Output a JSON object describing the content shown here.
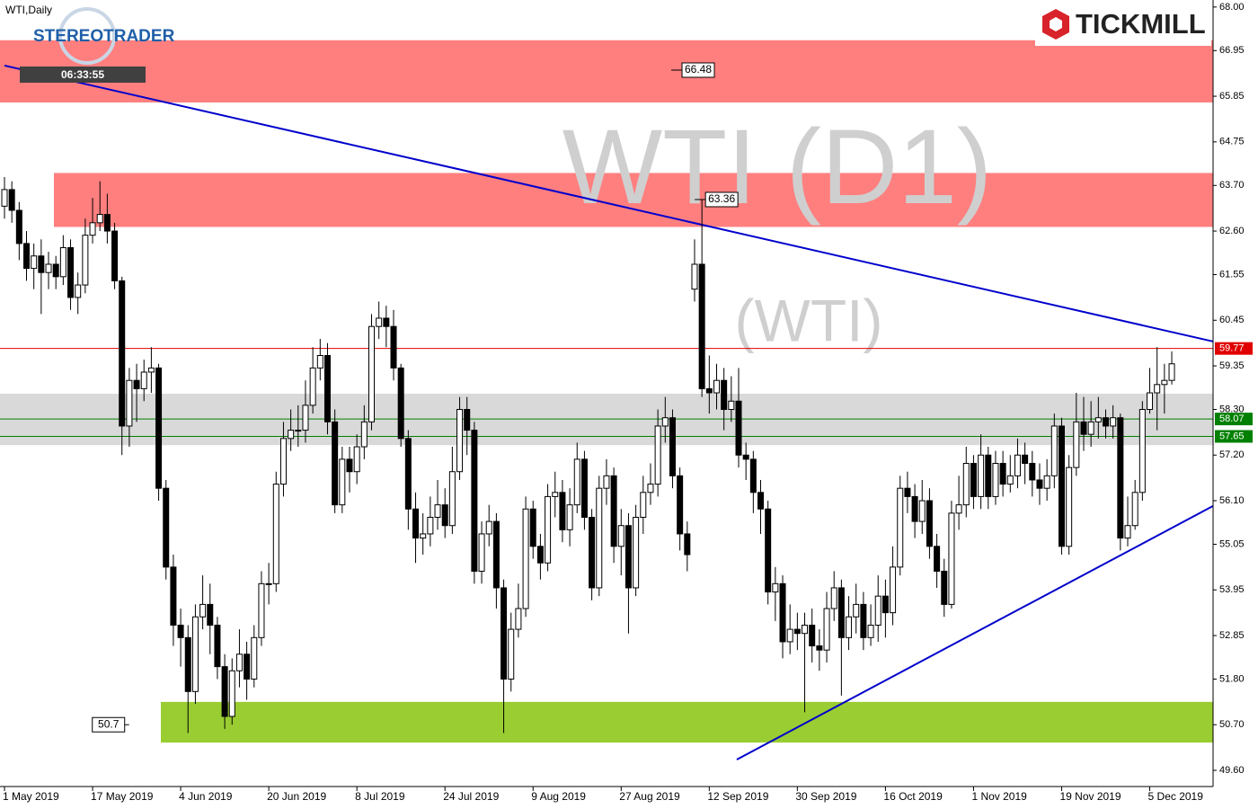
{
  "chart_data": {
    "type": "candlestick",
    "title": "WTI,Daily",
    "watermark": [
      "WTI (D1)",
      "(WTI)"
    ],
    "brands": [
      "STEREOTRADER",
      "TICKMILL"
    ],
    "timer": "06:33:55",
    "categories": [
      "1 May 2019",
      null,
      null,
      null,
      null,
      null,
      null,
      null,
      null,
      null,
      null,
      null,
      "17 May 2019",
      null,
      null,
      null,
      null,
      null,
      null,
      null,
      null,
      null,
      null,
      null,
      "4 Jun 2019",
      null,
      null,
      null,
      null,
      null,
      null,
      null,
      null,
      null,
      null,
      null,
      "20 Jun 2019",
      null,
      null,
      null,
      null,
      null,
      null,
      null,
      null,
      null,
      null,
      null,
      "8 Jul 2019",
      null,
      null,
      null,
      null,
      null,
      null,
      null,
      null,
      null,
      null,
      null,
      "24 Jul 2019",
      null,
      null,
      null,
      null,
      null,
      null,
      null,
      null,
      null,
      null,
      null,
      "9 Aug 2019",
      null,
      null,
      null,
      null,
      null,
      null,
      null,
      null,
      null,
      null,
      null,
      "27 Aug 2019",
      null,
      null,
      null,
      null,
      null,
      null,
      null,
      null,
      null,
      null,
      null,
      "12 Sep 2019",
      null,
      null,
      null,
      null,
      null,
      null,
      null,
      null,
      null,
      null,
      null,
      "30 Sep 2019",
      null,
      null,
      null,
      null,
      null,
      null,
      null,
      null,
      null,
      null,
      null,
      "16 Oct 2019",
      null,
      null,
      null,
      null,
      null,
      null,
      null,
      null,
      null,
      null,
      null,
      "1 Nov 2019",
      null,
      null,
      null,
      null,
      null,
      null,
      null,
      null,
      null,
      null,
      null,
      "19 Nov 2019",
      null,
      null,
      null,
      null,
      null,
      null,
      null,
      null,
      null,
      null,
      null,
      "5 Dec 2019",
      null,
      null,
      null
    ],
    "open": [
      63.2,
      63.6,
      63.1,
      62.3,
      61.7,
      62.0,
      61.6,
      61.8,
      61.5,
      62.2,
      61.0,
      61.3,
      62.5,
      62.8,
      63.0,
      62.6,
      61.4,
      57.9,
      59.0,
      58.8,
      59.2,
      59.3,
      56.4,
      54.5,
      53.1,
      52.8,
      51.5,
      53.3,
      53.6,
      53.1,
      52.1,
      50.9,
      52.0,
      52.4,
      51.8,
      52.8,
      54.1,
      54.1,
      56.5,
      57.6,
      57.8,
      57.8,
      58.4,
      59.3,
      59.6,
      58.0,
      56.0,
      57.1,
      56.8,
      57.4,
      58.0,
      60.3,
      60.5,
      60.3,
      59.3,
      57.6,
      55.9,
      55.2,
      55.3,
      55.7,
      56.0,
      55.5,
      56.8,
      58.3,
      57.8,
      54.4,
      55.3,
      55.6,
      54.0,
      51.8,
      53.0,
      53.5,
      55.9,
      55.0,
      54.6,
      56.2,
      56.3,
      55.4,
      56.0,
      57.1,
      55.7,
      54.0,
      56.4,
      56.7,
      55.0,
      55.5,
      54.0,
      55.7,
      56.3,
      56.5,
      57.9,
      58.1,
      56.7,
      55.3,
      61.2,
      61.8,
      58.8,
      58.7,
      59.0,
      58.3,
      58.5,
      57.2,
      57.1,
      56.3,
      55.9,
      53.9,
      54.1,
      52.7,
      53.0,
      52.9,
      53.1,
      52.6,
      52.5,
      53.5,
      54.0,
      52.8,
      53.3,
      53.6,
      52.8,
      53.1,
      53.8,
      53.4,
      54.5,
      56.4,
      56.2,
      55.6,
      56.1,
      55.0,
      54.4,
      53.6,
      55.8,
      56.0,
      57.0,
      56.2,
      57.2,
      56.2,
      57.0,
      56.5,
      56.7,
      57.2,
      57.0,
      56.6,
      56.4,
      56.7,
      57.9,
      55.0,
      56.9,
      58.0,
      57.7,
      58.0,
      58.1,
      57.9,
      58.1,
      55.2,
      55.5,
      56.3,
      58.3,
      58.7,
      58.9,
      59.0
    ],
    "high": [
      63.9,
      63.8,
      63.3,
      62.6,
      62.3,
      62.4,
      62.1,
      62.0,
      62.5,
      62.4,
      61.6,
      62.9,
      63.4,
      63.8,
      63.5,
      62.8,
      61.5,
      59.3,
      59.4,
      59.5,
      59.8,
      59.4,
      56.6,
      54.8,
      53.5,
      53.1,
      53.6,
      54.3,
      54.1,
      53.3,
      52.4,
      52.3,
      53.0,
      52.7,
      53.1,
      54.4,
      54.6,
      56.8,
      58.0,
      58.3,
      58.4,
      59.0,
      59.8,
      60.0,
      59.9,
      58.3,
      57.4,
      57.4,
      57.7,
      58.4,
      60.6,
      60.9,
      60.8,
      60.7,
      59.4,
      57.8,
      56.3,
      55.8,
      56.2,
      56.6,
      56.4,
      57.4,
      58.6,
      58.6,
      58.0,
      55.6,
      56.0,
      55.8,
      54.2,
      53.4,
      54.1,
      56.2,
      56.1,
      55.3,
      56.5,
      56.8,
      56.6,
      56.4,
      57.5,
      57.3,
      55.9,
      56.7,
      57.1,
      56.9,
      55.9,
      55.8,
      56.0,
      56.7,
      57.0,
      58.3,
      58.6,
      58.3,
      56.9,
      55.6,
      62.4,
      63.36,
      59.6,
      59.4,
      59.3,
      59.1,
      59.3,
      57.5,
      57.3,
      56.6,
      56.1,
      54.5,
      54.3,
      53.6,
      53.4,
      53.4,
      53.5,
      53.0,
      53.9,
      54.4,
      54.2,
      53.8,
      54.1,
      53.9,
      53.6,
      54.3,
      54.2,
      55.0,
      56.7,
      56.8,
      56.5,
      56.6,
      56.4,
      55.3,
      54.7,
      56.1,
      56.7,
      57.4,
      57.2,
      57.7,
      57.4,
      57.3,
      57.3,
      57.2,
      57.6,
      57.5,
      57.3,
      57.0,
      57.1,
      58.2,
      58.1,
      57.2,
      58.7,
      58.6,
      58.5,
      58.6,
      58.3,
      58.4,
      58.2,
      56.2,
      56.6,
      58.5,
      59.3,
      59.8,
      59.4,
      59.7
    ],
    "low": [
      62.9,
      62.8,
      61.9,
      61.4,
      61.2,
      60.6,
      61.2,
      61.2,
      61.3,
      60.7,
      60.6,
      61.1,
      62.3,
      62.6,
      62.3,
      61.2,
      57.2,
      57.4,
      58.0,
      58.5,
      58.7,
      56.1,
      54.2,
      52.6,
      52.1,
      50.5,
      51.2,
      53.0,
      52.4,
      51.8,
      50.6,
      50.7,
      51.6,
      51.3,
      51.6,
      52.6,
      53.6,
      53.9,
      56.2,
      57.3,
      57.4,
      57.5,
      58.2,
      59.0,
      57.7,
      55.8,
      55.8,
      56.3,
      56.5,
      57.1,
      57.8,
      60.0,
      59.8,
      59.0,
      57.4,
      55.4,
      54.6,
      54.8,
      55.0,
      55.4,
      55.2,
      55.3,
      56.6,
      57.2,
      54.1,
      54.1,
      55.0,
      53.5,
      50.5,
      51.5,
      52.8,
      53.3,
      54.7,
      54.2,
      54.4,
      55.7,
      55.1,
      55.0,
      55.8,
      55.4,
      53.7,
      53.8,
      56.0,
      54.6,
      54.3,
      52.9,
      53.8,
      55.3,
      56.0,
      56.2,
      57.5,
      56.4,
      54.9,
      54.4,
      60.9,
      58.6,
      58.2,
      58.3,
      57.8,
      58.0,
      56.9,
      56.6,
      55.8,
      55.3,
      53.6,
      53.2,
      52.3,
      52.4,
      52.5,
      51.0,
      52.2,
      52.0,
      52.2,
      53.2,
      51.4,
      52.5,
      52.9,
      52.5,
      52.6,
      52.7,
      52.8,
      53.1,
      54.3,
      55.8,
      55.2,
      55.3,
      54.7,
      54.0,
      53.3,
      53.5,
      55.4,
      55.7,
      55.9,
      55.9,
      55.9,
      56.0,
      56.2,
      56.3,
      56.4,
      56.5,
      56.2,
      56.0,
      56.1,
      56.4,
      54.8,
      54.8,
      56.7,
      57.3,
      57.4,
      57.6,
      57.6,
      57.6,
      54.9,
      55.0,
      55.4,
      56.1,
      58.2,
      57.8,
      58.2,
      58.9
    ],
    "close": [
      63.6,
      63.1,
      62.3,
      61.7,
      62.0,
      61.6,
      61.8,
      61.5,
      62.2,
      61.0,
      61.3,
      62.5,
      62.8,
      63.0,
      62.6,
      61.4,
      57.9,
      59.0,
      58.8,
      59.2,
      59.3,
      56.4,
      54.5,
      53.1,
      52.8,
      51.5,
      53.3,
      53.6,
      53.1,
      52.1,
      50.9,
      52.0,
      52.4,
      51.8,
      52.8,
      54.1,
      54.1,
      56.5,
      57.6,
      57.8,
      57.8,
      58.4,
      59.3,
      59.6,
      58.0,
      56.0,
      57.1,
      56.8,
      57.4,
      58.0,
      60.3,
      60.5,
      60.3,
      59.3,
      57.6,
      55.9,
      55.2,
      55.3,
      55.7,
      56.0,
      55.5,
      56.8,
      58.3,
      57.8,
      54.4,
      55.3,
      55.6,
      54.0,
      51.8,
      53.0,
      53.5,
      55.9,
      55.0,
      54.6,
      56.2,
      56.3,
      55.4,
      56.0,
      57.1,
      55.7,
      54.0,
      56.4,
      56.7,
      55.0,
      55.5,
      54.0,
      55.7,
      56.3,
      56.5,
      57.9,
      58.1,
      56.7,
      55.3,
      54.8,
      61.8,
      58.8,
      58.7,
      59.0,
      58.3,
      58.5,
      57.2,
      57.1,
      56.3,
      55.9,
      53.9,
      54.1,
      52.7,
      53.0,
      52.9,
      53.1,
      52.6,
      52.5,
      53.5,
      54.0,
      52.8,
      53.3,
      53.6,
      52.8,
      53.1,
      53.8,
      53.4,
      54.5,
      56.4,
      56.2,
      55.6,
      56.1,
      55.0,
      54.4,
      53.6,
      55.8,
      56.0,
      57.0,
      56.2,
      57.2,
      56.2,
      57.0,
      56.5,
      56.7,
      57.2,
      57.0,
      56.6,
      56.4,
      56.7,
      57.9,
      55.0,
      56.9,
      58.0,
      57.7,
      58.0,
      58.1,
      57.9,
      58.1,
      55.2,
      55.5,
      56.3,
      58.3,
      58.7,
      58.9,
      59.0,
      59.4
    ],
    "ylim": [
      49.21,
      68.17
    ],
    "yticks": [
      {
        "value": 68,
        "label": "68.00"
      },
      {
        "value": 66.95,
        "label": "66.95"
      },
      {
        "value": 65.85,
        "label": "65.85"
      },
      {
        "value": 64.75,
        "label": "64.75"
      },
      {
        "value": 63.7,
        "label": "63.70"
      },
      {
        "value": 62.6,
        "label": "62.60"
      },
      {
        "value": 61.55,
        "label": "61.55"
      },
      {
        "value": 60.45,
        "label": "60.45"
      },
      {
        "value": 59.35,
        "label": "59.35"
      },
      {
        "value": 58.3,
        "label": "58.30"
      },
      {
        "value": 57.2,
        "label": "57.20"
      },
      {
        "value": 56.1,
        "label": "56.10"
      },
      {
        "value": 55.05,
        "label": "55.05"
      },
      {
        "value": 53.95,
        "label": "53.95"
      },
      {
        "value": 52.85,
        "label": "52.85"
      },
      {
        "value": 51.8,
        "label": "51.80"
      },
      {
        "value": 50.7,
        "label": "50.70"
      },
      {
        "value": 49.6,
        "label": "49.60"
      }
    ],
    "zones": [
      {
        "from": 65.7,
        "to": 67.2,
        "color": "#ff7f7f"
      },
      {
        "from": 62.7,
        "to": 64.0,
        "color": "#ff7f7f"
      },
      {
        "from": 57.44,
        "to": 58.68,
        "color": "#d9d9d9"
      },
      {
        "from": 50.27,
        "to": 51.25,
        "color": "#9acd32"
      }
    ],
    "levels": [
      {
        "value": 59.77,
        "color": "#e00000"
      },
      {
        "value": 58.07,
        "color": "#008000"
      },
      {
        "value": 57.65,
        "color": "#008000"
      }
    ],
    "trendlines": [
      {
        "x": [
          0,
          164.6
        ],
        "y": [
          66.59,
          59.94
        ],
        "color": "#0000cc"
      },
      {
        "x": [
          99.75,
          164.6
        ],
        "y": [
          49.86,
          55.97
        ],
        "color": "#0000cc"
      }
    ],
    "annotations": [
      {
        "x": 91.8,
        "value": 66.48
      },
      {
        "x": 95,
        "value": 63.36
      },
      {
        "x": 16,
        "value": 50.7
      }
    ]
  }
}
